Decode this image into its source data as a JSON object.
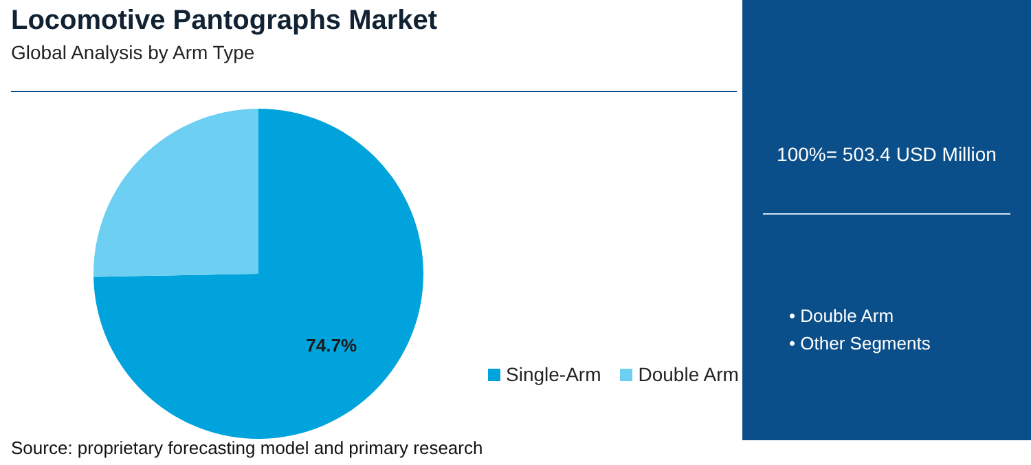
{
  "chart_data": {
    "type": "pie",
    "title": "Locomotive Pantographs Market",
    "subtitle": "Global Analysis by Arm Type",
    "categories": [
      "Single-Arm",
      "Double Arm"
    ],
    "values": [
      74.7,
      25.3
    ],
    "colors": [
      "#00a3db",
      "#6dcff2"
    ],
    "value_labels": [
      "74.7%",
      null
    ],
    "legend": "right",
    "annotations": [
      "100%= 503.4 USD Million",
      "• Double Arm",
      "• Other Segments",
      "Source: proprietary forecasting model and primary research"
    ]
  }
}
